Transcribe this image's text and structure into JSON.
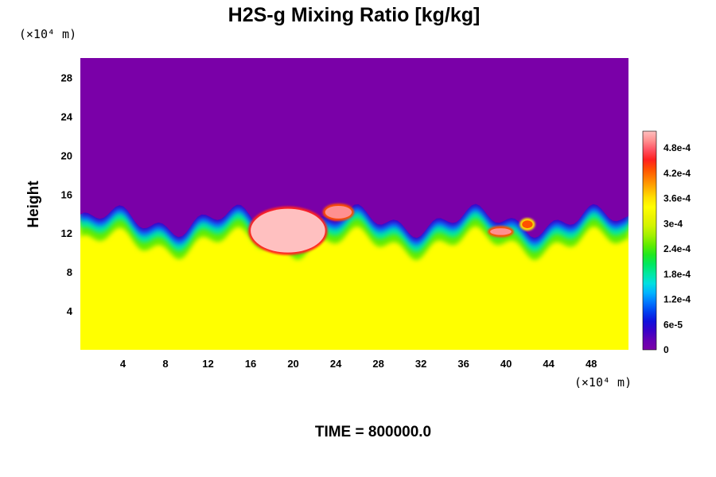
{
  "chart_data": {
    "type": "heatmap",
    "title": "H2S-g Mixing Ratio [kg/kg]",
    "ylabel": "Height",
    "xlabel": "",
    "x_unit": "(×10⁴ m)",
    "y_unit": "(×10⁴ m)",
    "xlim": [
      0,
      51.5
    ],
    "ylim": [
      0,
      30
    ],
    "x_ticks": [
      "4",
      "8",
      "12",
      "16",
      "20",
      "24",
      "28",
      "32",
      "36",
      "40",
      "44",
      "48"
    ],
    "y_ticks": [
      "4",
      "8",
      "12",
      "16",
      "20",
      "24",
      "28"
    ],
    "colorbar": {
      "range": [
        0,
        0.00052
      ],
      "labels": [
        "0",
        "6e-5",
        "1.2e-4",
        "1.8e-4",
        "2.4e-4",
        "3e-4",
        "3.6e-4",
        "4.2e-4",
        "4.8e-4"
      ],
      "label_values": [
        0,
        6e-05,
        0.00012,
        0.00018,
        0.00024,
        0.0003,
        0.00036,
        0.00042,
        0.00048
      ],
      "colors": [
        "#7a00a8",
        "#6400b4",
        "#3a00c8",
        "#1010dc",
        "#0040f0",
        "#0078ff",
        "#00b4ff",
        "#00e0e0",
        "#00e8a0",
        "#00e860",
        "#20e820",
        "#60ec00",
        "#a0f000",
        "#d0f400",
        "#ecf400",
        "#ffff00",
        "#ffe000",
        "#ffb000",
        "#ff8000",
        "#ff5000",
        "#ff2020",
        "#ff5060",
        "#ff9090",
        "#ffc0c0"
      ]
    },
    "field": {
      "background_value": 0.00035,
      "upper_value": 0.0,
      "interface_height_range": [
        11.5,
        15
      ],
      "high_patches": [
        {
          "x": [
            16,
            23
          ],
          "y": [
            10,
            14.5
          ],
          "value": 0.00052
        },
        {
          "x": [
            23,
            25.5
          ],
          "y": [
            13.5,
            14.8
          ],
          "value": 0.0005
        },
        {
          "x": [
            38.5,
            40.5
          ],
          "y": [
            11.8,
            12.5
          ],
          "value": 0.0005
        },
        {
          "x": [
            41.5,
            42.5
          ],
          "y": [
            12.5,
            13.3
          ],
          "value": 0.00042
        }
      ]
    }
  },
  "footer": {
    "time_label": "TIME = 800000.0"
  }
}
